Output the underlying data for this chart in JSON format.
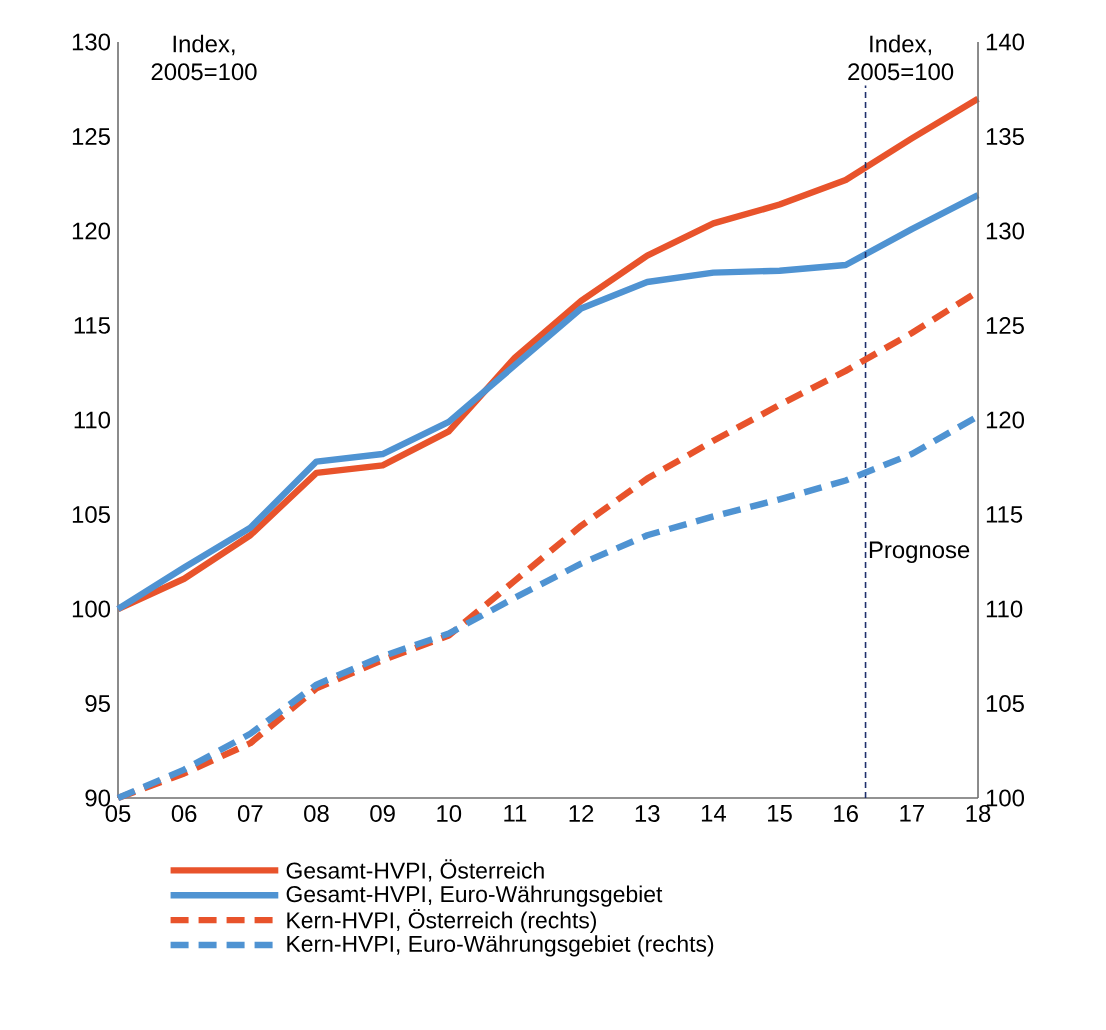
{
  "chart_data": {
    "type": "line",
    "x": [
      2005,
      2006,
      2007,
      2008,
      2009,
      2010,
      2011,
      2012,
      2013,
      2014,
      2015,
      2016,
      2017,
      2018
    ],
    "xlim": [
      2005,
      2018
    ],
    "xticks": [
      {
        "value": 2005,
        "label": "05"
      },
      {
        "value": 2006,
        "label": "06"
      },
      {
        "value": 2007,
        "label": "07"
      },
      {
        "value": 2008,
        "label": "08"
      },
      {
        "value": 2009,
        "label": "09"
      },
      {
        "value": 2010,
        "label": "10"
      },
      {
        "value": 2011,
        "label": "11"
      },
      {
        "value": 2012,
        "label": "12"
      },
      {
        "value": 2013,
        "label": "13"
      },
      {
        "value": 2014,
        "label": "14"
      },
      {
        "value": 2015,
        "label": "15"
      },
      {
        "value": 2016,
        "label": "16"
      },
      {
        "value": 2017,
        "label": "17"
      },
      {
        "value": 2018,
        "label": "18"
      }
    ],
    "ylim": [
      90,
      130
    ],
    "yticks": [
      90,
      95,
      100,
      105,
      110,
      115,
      120,
      125,
      130
    ],
    "y2lim": [
      100,
      140
    ],
    "y2ticks": [
      100,
      105,
      110,
      115,
      120,
      125,
      130,
      135,
      140
    ],
    "series": [
      {
        "name": "Gesamt-HVPI, Österreich",
        "color": "#e8532b",
        "line_style": "solid",
        "values": [
          100,
          101.6,
          103.9,
          107.2,
          107.6,
          109.4,
          113.3,
          116.3,
          118.7,
          120.4,
          121.4,
          122.7,
          124.9,
          127.0
        ]
      },
      {
        "name": "Gesamt-HVPI, Euro-Währungsgebiet",
        "color": "#4f93d2",
        "line_style": "solid",
        "values": [
          100,
          102.2,
          104.3,
          107.8,
          108.2,
          109.9,
          112.9,
          115.9,
          117.3,
          117.8,
          117.9,
          118.2,
          120.1,
          121.9
        ]
      },
      {
        "name": "Kern-HVPI, Österreich (rechts)",
        "color": "#e8532b",
        "line_style": "dashed",
        "axis": "y2",
        "values": [
          100,
          101.3,
          102.9,
          105.8,
          107.3,
          108.6,
          111.5,
          114.4,
          116.9,
          118.9,
          120.8,
          122.6,
          124.6,
          126.8
        ]
      },
      {
        "name": "Kern-HVPI, Euro-Währungsgebiet (rechts)",
        "color": "#4f93d2",
        "line_style": "dashed",
        "axis": "y2",
        "values": [
          100,
          101.5,
          103.4,
          106.0,
          107.5,
          108.7,
          110.6,
          112.4,
          113.9,
          114.9,
          115.8,
          116.8,
          118.2,
          120.2
        ]
      }
    ],
    "ref_lines": [
      {
        "axis": "x",
        "value": 2016.3,
        "label": "Prognose",
        "color": "#1f2f6b",
        "line_style": "dashed"
      }
    ],
    "annotations": [
      "Index, 2005=100",
      "Index, 2005=100"
    ],
    "legend": "bottom",
    "grid": false
  }
}
